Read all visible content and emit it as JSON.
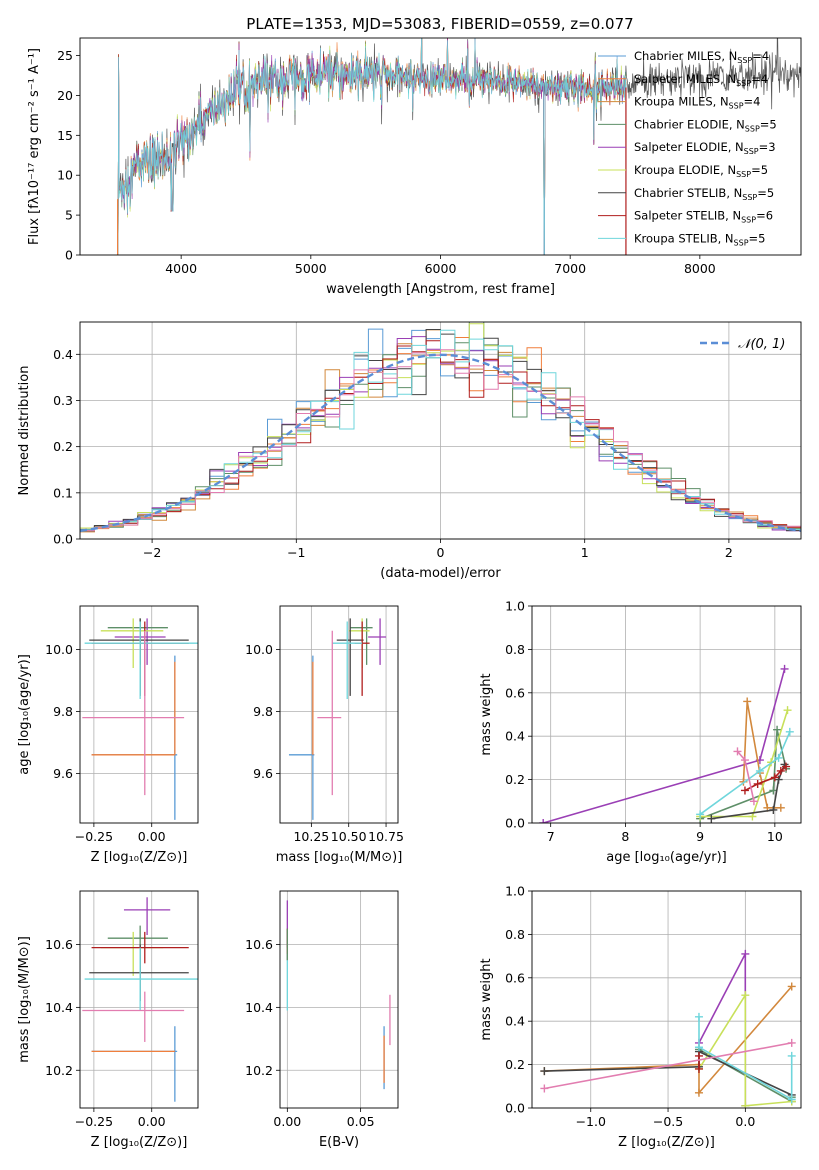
{
  "figure_title": "PLATE=1353, MJD=53083, FIBERID=0559, z=0.077",
  "colors": {
    "Chabrier MILES": "#5a9bd5",
    "Salpeter MILES": "#f07f3c",
    "Kroupa MILES": "#d2883c",
    "Chabrier ELODIE": "#5e8f68",
    "Salpeter ELODIE": "#9a3fb5",
    "Kroupa ELODIE": "#c8e05a",
    "Chabrier STELIB": "#444444",
    "Salpeter STELIB": "#b01e1e",
    "Kroupa STELIB": "#6fd6dc",
    "extra_pink": "#e27db0",
    "grid": "#b0b0b0",
    "normal_line": "#5b8ed6"
  },
  "chart_data": [
    {
      "id": "spectrum",
      "type": "line",
      "title": "PLATE=1353, MJD=53083, FIBERID=0559, z=0.077",
      "xlabel": "wavelength [Angstrom, rest frame]",
      "ylabel": "Flux [fλ10⁻¹⁷ erg cm⁻² s⁻¹ A⁻¹]",
      "xlim": [
        3220,
        8780
      ],
      "ylim": [
        0,
        27.2
      ],
      "xticks": [
        4000,
        5000,
        6000,
        7000,
        8000
      ],
      "yticks": [
        0,
        5,
        10,
        15,
        20,
        25
      ],
      "grid": false,
      "legend_position": "right",
      "legend": [
        {
          "label": "Chabrier MILES, N",
          "sub": "SSP",
          "tail": "=4"
        },
        {
          "label": "Salpeter MILES, N",
          "sub": "SSP",
          "tail": "=4"
        },
        {
          "label": "Kroupa MILES, N",
          "sub": "SSP",
          "tail": "=4"
        },
        {
          "label": "Chabrier ELODIE, N",
          "sub": "SSP",
          "tail": "=5"
        },
        {
          "label": "Salpeter ELODIE, N",
          "sub": "SSP",
          "tail": "=3"
        },
        {
          "label": "Kroupa ELODIE, N",
          "sub": "SSP",
          "tail": "=5"
        },
        {
          "label": "Chabrier STELIB, N",
          "sub": "SSP",
          "tail": "=5"
        },
        {
          "label": "Salpeter STELIB, N",
          "sub": "SSP",
          "tail": "=6"
        },
        {
          "label": "Kroupa STELIB, N",
          "sub": "SSP",
          "tail": "=5"
        }
      ],
      "continuum_nodes": [
        [
          3520,
          8
        ],
        [
          3650,
          11
        ],
        [
          3800,
          12
        ],
        [
          3950,
          13
        ],
        [
          4050,
          15
        ],
        [
          4250,
          18
        ],
        [
          4450,
          21
        ],
        [
          4700,
          22
        ],
        [
          5000,
          22.5
        ],
        [
          5300,
          22.5
        ],
        [
          5600,
          22.5
        ],
        [
          6000,
          22
        ],
        [
          6500,
          21.5
        ],
        [
          7000,
          21
        ],
        [
          7400,
          21
        ],
        [
          7800,
          22
        ],
        [
          8300,
          22.5
        ],
        [
          8700,
          23
        ]
      ],
      "sharp_dips": [
        [
          3935,
          5.5
        ],
        [
          6800,
          0
        ]
      ],
      "model_start": 3510,
      "model_end": 7430
    },
    {
      "id": "residuals",
      "type": "step",
      "xlabel": "(data-model)/error",
      "ylabel": "Normed distribution",
      "xlim": [
        -2.5,
        2.5
      ],
      "ylim": [
        0,
        0.47
      ],
      "xticks": [
        -2,
        -1,
        0,
        1,
        2
      ],
      "yticks": [
        0.0,
        0.1,
        0.2,
        0.3,
        0.4
      ],
      "grid": true,
      "legend_position": "top-right",
      "legend_label": "𝒩(0, 1)",
      "normal_mu": 0,
      "normal_sigma": 1,
      "bin_width": 0.1
    },
    {
      "id": "age_vs_Z",
      "type": "errorbar",
      "xlabel": "Z [log₁₀(Z/Z⊙)]",
      "ylabel": "age  [log₁₀(age/yr)]",
      "xlim": [
        -0.31,
        0.2
      ],
      "ylim": [
        9.44,
        10.14
      ],
      "xticks": [
        -0.25,
        0.0
      ],
      "yticks": [
        9.6,
        9.8,
        10.0
      ],
      "grid": true,
      "points": [
        {
          "series": "Chabrier MILES",
          "x": 0.1,
          "y": 9.66,
          "xerr": [
            0.36,
            0.01
          ],
          "yerr": [
            0.21,
            0.32
          ]
        },
        {
          "series": "Salpeter MILES",
          "x": 0.1,
          "y": 9.66,
          "xerr": [
            0.36,
            0.0
          ],
          "yerr": [
            0.0,
            0.3
          ]
        },
        {
          "series": "Chabrier ELODIE",
          "x": -0.05,
          "y": 10.07,
          "xerr": [
            0.14,
            0.12
          ],
          "yerr": [
            0.12,
            0.03
          ]
        },
        {
          "series": "Salpeter ELODIE",
          "x": -0.02,
          "y": 10.04,
          "xerr": [
            0.14,
            0.08
          ],
          "yerr": [
            0.09,
            0.06
          ]
        },
        {
          "series": "Kroupa ELODIE",
          "x": -0.08,
          "y": 10.06,
          "xerr": [
            0.14,
            0.13
          ],
          "yerr": [
            0.12,
            0.04
          ]
        },
        {
          "series": "Chabrier STELIB",
          "x": -0.05,
          "y": 10.03,
          "xerr": [
            0.22,
            0.21
          ],
          "yerr": [
            0.18,
            0.07
          ]
        },
        {
          "series": "Salpeter STELIB",
          "x": -0.03,
          "y": 10.02,
          "xerr": [
            0.23,
            0.19
          ],
          "yerr": [
            0.17,
            0.07
          ]
        },
        {
          "series": "Kroupa STELIB",
          "x": -0.05,
          "y": 10.02,
          "xerr": [
            0.24,
            0.25
          ],
          "yerr": [
            0.18,
            0.07
          ]
        },
        {
          "series": "extra_pink",
          "x": -0.03,
          "y": 9.78,
          "xerr": [
            0.27,
            0.17
          ],
          "yerr": [
            0.25,
            0.28
          ]
        }
      ]
    },
    {
      "id": "age_vs_mass",
      "type": "errorbar",
      "xlabel": "mass [log₁₀(M/M⊙)]",
      "ylabel": "",
      "xlim": [
        10.04,
        10.83
      ],
      "ylim": [
        9.44,
        10.14
      ],
      "xticks": [
        10.25,
        10.5,
        10.75
      ],
      "yticks": [
        9.6,
        9.8,
        10.0
      ],
      "grid": true,
      "points": [
        {
          "series": "Chabrier MILES",
          "x": 10.26,
          "y": 9.66,
          "xerr": [
            0.16,
            0.01
          ],
          "yerr": [
            0.21,
            0.32
          ]
        },
        {
          "series": "Salpeter MILES",
          "x": 10.26,
          "y": 9.66,
          "xerr": [
            0.0,
            0.0
          ],
          "yerr": [
            0.0,
            0.3
          ]
        },
        {
          "series": "Chabrier ELODIE",
          "x": 10.62,
          "y": 10.07,
          "xerr": [
            0.11,
            0.04
          ],
          "yerr": [
            0.12,
            0.03
          ]
        },
        {
          "series": "Salpeter ELODIE",
          "x": 10.71,
          "y": 10.04,
          "xerr": [
            0.08,
            0.04
          ],
          "yerr": [
            0.09,
            0.06
          ]
        },
        {
          "series": "Kroupa ELODIE",
          "x": 10.59,
          "y": 10.06,
          "xerr": [
            0.09,
            0.05
          ],
          "yerr": [
            0.12,
            0.04
          ]
        },
        {
          "series": "Chabrier STELIB",
          "x": 10.51,
          "y": 10.03,
          "xerr": [
            0.09,
            0.09
          ],
          "yerr": [
            0.18,
            0.07
          ]
        },
        {
          "series": "Salpeter STELIB",
          "x": 10.59,
          "y": 10.02,
          "xerr": [
            0.05,
            0.05
          ],
          "yerr": [
            0.17,
            0.07
          ]
        },
        {
          "series": "Kroupa STELIB",
          "x": 10.49,
          "y": 10.02,
          "xerr": [
            0.1,
            0.1
          ],
          "yerr": [
            0.18,
            0.07
          ]
        },
        {
          "series": "extra_pink",
          "x": 10.39,
          "y": 9.78,
          "xerr": [
            0.1,
            0.06
          ],
          "yerr": [
            0.25,
            0.28
          ]
        }
      ]
    },
    {
      "id": "weight_vs_age",
      "type": "line",
      "xlabel": "age  [log₁₀(age/yr)]",
      "ylabel": "mass weight",
      "xlim": [
        6.75,
        10.35
      ],
      "ylim": [
        0,
        1.0
      ],
      "xticks": [
        7,
        8,
        9,
        10
      ],
      "yticks": [
        0.0,
        0.2,
        0.4,
        0.6,
        0.8,
        1.0
      ],
      "grid": true,
      "series": [
        {
          "name": "Salpeter ELODIE",
          "x": [
            6.9,
            9.8,
            10.13
          ],
          "y": [
            0.0,
            0.29,
            0.71
          ]
        },
        {
          "name": "Kroupa MILES",
          "x": [
            9.58,
            9.63,
            9.8,
            9.9,
            10.08
          ],
          "y": [
            0.19,
            0.56,
            0.23,
            0.07,
            0.07
          ]
        },
        {
          "name": "Chabrier ELODIE",
          "x": [
            9.0,
            9.98,
            10.03,
            10.15
          ],
          "y": [
            0.02,
            0.15,
            0.43,
            0.25
          ]
        },
        {
          "name": "Kroupa ELODIE",
          "x": [
            9.0,
            9.7,
            9.95,
            10.17
          ],
          "y": [
            0.03,
            0.03,
            0.28,
            0.52
          ]
        },
        {
          "name": "Chabrier STELIB",
          "x": [
            9.15,
            9.98,
            10.05,
            10.13
          ],
          "y": [
            0.02,
            0.06,
            0.2,
            0.27
          ]
        },
        {
          "name": "Salpeter STELIB",
          "x": [
            9.6,
            9.77,
            10.0,
            10.08,
            10.15
          ],
          "y": [
            0.15,
            0.18,
            0.21,
            0.24,
            0.26
          ]
        },
        {
          "name": "Kroupa STELIB",
          "x": [
            9.0,
            9.8,
            10.05,
            10.2
          ],
          "y": [
            0.04,
            0.24,
            0.3,
            0.42
          ]
        },
        {
          "name": "extra_pink",
          "x": [
            9.5,
            9.6,
            9.72
          ],
          "y": [
            0.33,
            0.29,
            0.1
          ]
        }
      ]
    },
    {
      "id": "mass_vs_Z",
      "type": "errorbar",
      "xlabel": "Z [log₁₀(Z/Z⊙)]",
      "ylabel": "mass [log₁₀(M/M⊙)]",
      "xlim": [
        -0.31,
        0.2
      ],
      "ylim": [
        10.08,
        10.77
      ],
      "xticks": [
        -0.25,
        0.0
      ],
      "yticks": [
        10.2,
        10.4,
        10.6
      ],
      "grid": true,
      "points": [
        {
          "series": "Chabrier MILES",
          "x": 0.1,
          "y": 10.26,
          "xerr": [
            0.36,
            0.01
          ],
          "yerr": [
            0.16,
            0.08
          ]
        },
        {
          "series": "Salpeter MILES",
          "x": 0.1,
          "y": 10.26,
          "xerr": [
            0.36,
            0.0
          ],
          "yerr": [
            0.0,
            0.0
          ]
        },
        {
          "series": "Chabrier ELODIE",
          "x": -0.05,
          "y": 10.62,
          "xerr": [
            0.14,
            0.12
          ],
          "yerr": [
            0.11,
            0.04
          ]
        },
        {
          "series": "Salpeter ELODIE",
          "x": -0.02,
          "y": 10.71,
          "xerr": [
            0.1,
            0.1
          ],
          "yerr": [
            0.08,
            0.04
          ]
        },
        {
          "series": "Kroupa ELODIE",
          "x": -0.08,
          "y": 10.59,
          "xerr": [
            0.14,
            0.13
          ],
          "yerr": [
            0.09,
            0.05
          ]
        },
        {
          "series": "Chabrier STELIB",
          "x": -0.05,
          "y": 10.51,
          "xerr": [
            0.22,
            0.21
          ],
          "yerr": [
            0.09,
            0.09
          ]
        },
        {
          "series": "Salpeter STELIB",
          "x": -0.03,
          "y": 10.59,
          "xerr": [
            0.23,
            0.19
          ],
          "yerr": [
            0.05,
            0.05
          ]
        },
        {
          "series": "Kroupa STELIB",
          "x": -0.05,
          "y": 10.49,
          "xerr": [
            0.24,
            0.25
          ],
          "yerr": [
            0.1,
            0.1
          ]
        },
        {
          "series": "extra_pink",
          "x": -0.03,
          "y": 10.39,
          "xerr": [
            0.27,
            0.17
          ],
          "yerr": [
            0.1,
            0.06
          ]
        }
      ]
    },
    {
      "id": "mass_vs_ebv",
      "type": "errorbar",
      "xlabel": "E(B-V)",
      "ylabel": "",
      "xlim": [
        -0.005,
        0.0755
      ],
      "ylim": [
        10.08,
        10.77
      ],
      "xticks": [
        0.0,
        0.05
      ],
      "yticks": [
        10.2,
        10.4,
        10.6
      ],
      "grid": true,
      "points": [
        {
          "series": "Chabrier MILES",
          "x": 0.066,
          "y": 10.26,
          "xerr": [
            0.0,
            0.0
          ],
          "yerr": [
            0.12,
            0.08
          ]
        },
        {
          "series": "Salpeter MILES",
          "x": 0.066,
          "y": 10.26,
          "xerr": [
            0.0,
            0.0
          ],
          "yerr": [
            0.1,
            0.05
          ]
        },
        {
          "series": "extra_pink",
          "x": 0.07,
          "y": 10.36,
          "xerr": [
            0.0,
            0.0
          ],
          "yerr": [
            0.08,
            0.08
          ]
        },
        {
          "series": "Salpeter ELODIE",
          "x": 0.0,
          "y": 10.66,
          "xerr": [
            0.0,
            0.0
          ],
          "yerr": [
            0.07,
            0.08
          ]
        },
        {
          "series": "Salpeter STELIB",
          "x": 0.0,
          "y": 10.6,
          "xerr": [
            0.0,
            0.0
          ],
          "yerr": [
            0.05,
            0.05
          ]
        },
        {
          "series": "Kroupa STELIB",
          "x": 0.0,
          "y": 10.49,
          "xerr": [
            0.0,
            0.0
          ],
          "yerr": [
            0.1,
            0.08
          ]
        },
        {
          "series": "Chabrier ELODIE",
          "x": 0.0,
          "y": 10.6,
          "xerr": [
            0.0,
            0.0
          ],
          "yerr": [
            0.05,
            0.05
          ]
        }
      ]
    },
    {
      "id": "weight_vs_Z",
      "type": "line",
      "xlabel": "Z [log₁₀(Z/Z⊙)]",
      "ylabel": "mass weight",
      "xlim": [
        -1.38,
        0.36
      ],
      "ylim": [
        0,
        1.0
      ],
      "xticks": [
        -1.0,
        -0.5,
        0.0
      ],
      "yticks": [
        0.0,
        0.2,
        0.4,
        0.6,
        0.8,
        1.0
      ],
      "grid": true,
      "series": [
        {
          "name": "Salpeter ELODIE",
          "x": [
            -0.3,
            0.0,
            0.0
          ],
          "y": [
            0.3,
            0.71,
            0.01
          ]
        },
        {
          "name": "Kroupa MILES",
          "x": [
            -1.3,
            -0.3,
            -0.3,
            0.3
          ],
          "y": [
            0.17,
            0.2,
            0.07,
            0.56
          ]
        },
        {
          "name": "Chabrier ELODIE",
          "x": [
            -0.3,
            0.3,
            0.3
          ],
          "y": [
            0.27,
            0.03,
            0.05
          ]
        },
        {
          "name": "Kroupa ELODIE",
          "x": [
            -0.3,
            0.0,
            0.0,
            0.3
          ],
          "y": [
            0.18,
            0.52,
            0.01,
            0.03
          ]
        },
        {
          "name": "Chabrier STELIB",
          "x": [
            -1.3,
            -0.3,
            -0.3,
            0.3
          ],
          "y": [
            0.17,
            0.19,
            0.26,
            0.06
          ]
        },
        {
          "name": "Salpeter STELIB",
          "x": [
            -0.3,
            -0.3
          ],
          "y": [
            0.18,
            0.24
          ]
        },
        {
          "name": "Kroupa STELIB",
          "x": [
            -0.3,
            -0.3,
            0.3,
            0.3
          ],
          "y": [
            0.42,
            0.28,
            0.04,
            0.24
          ]
        },
        {
          "name": "extra_pink",
          "x": [
            -1.3,
            0.3
          ],
          "y": [
            0.09,
            0.3
          ]
        }
      ]
    }
  ]
}
